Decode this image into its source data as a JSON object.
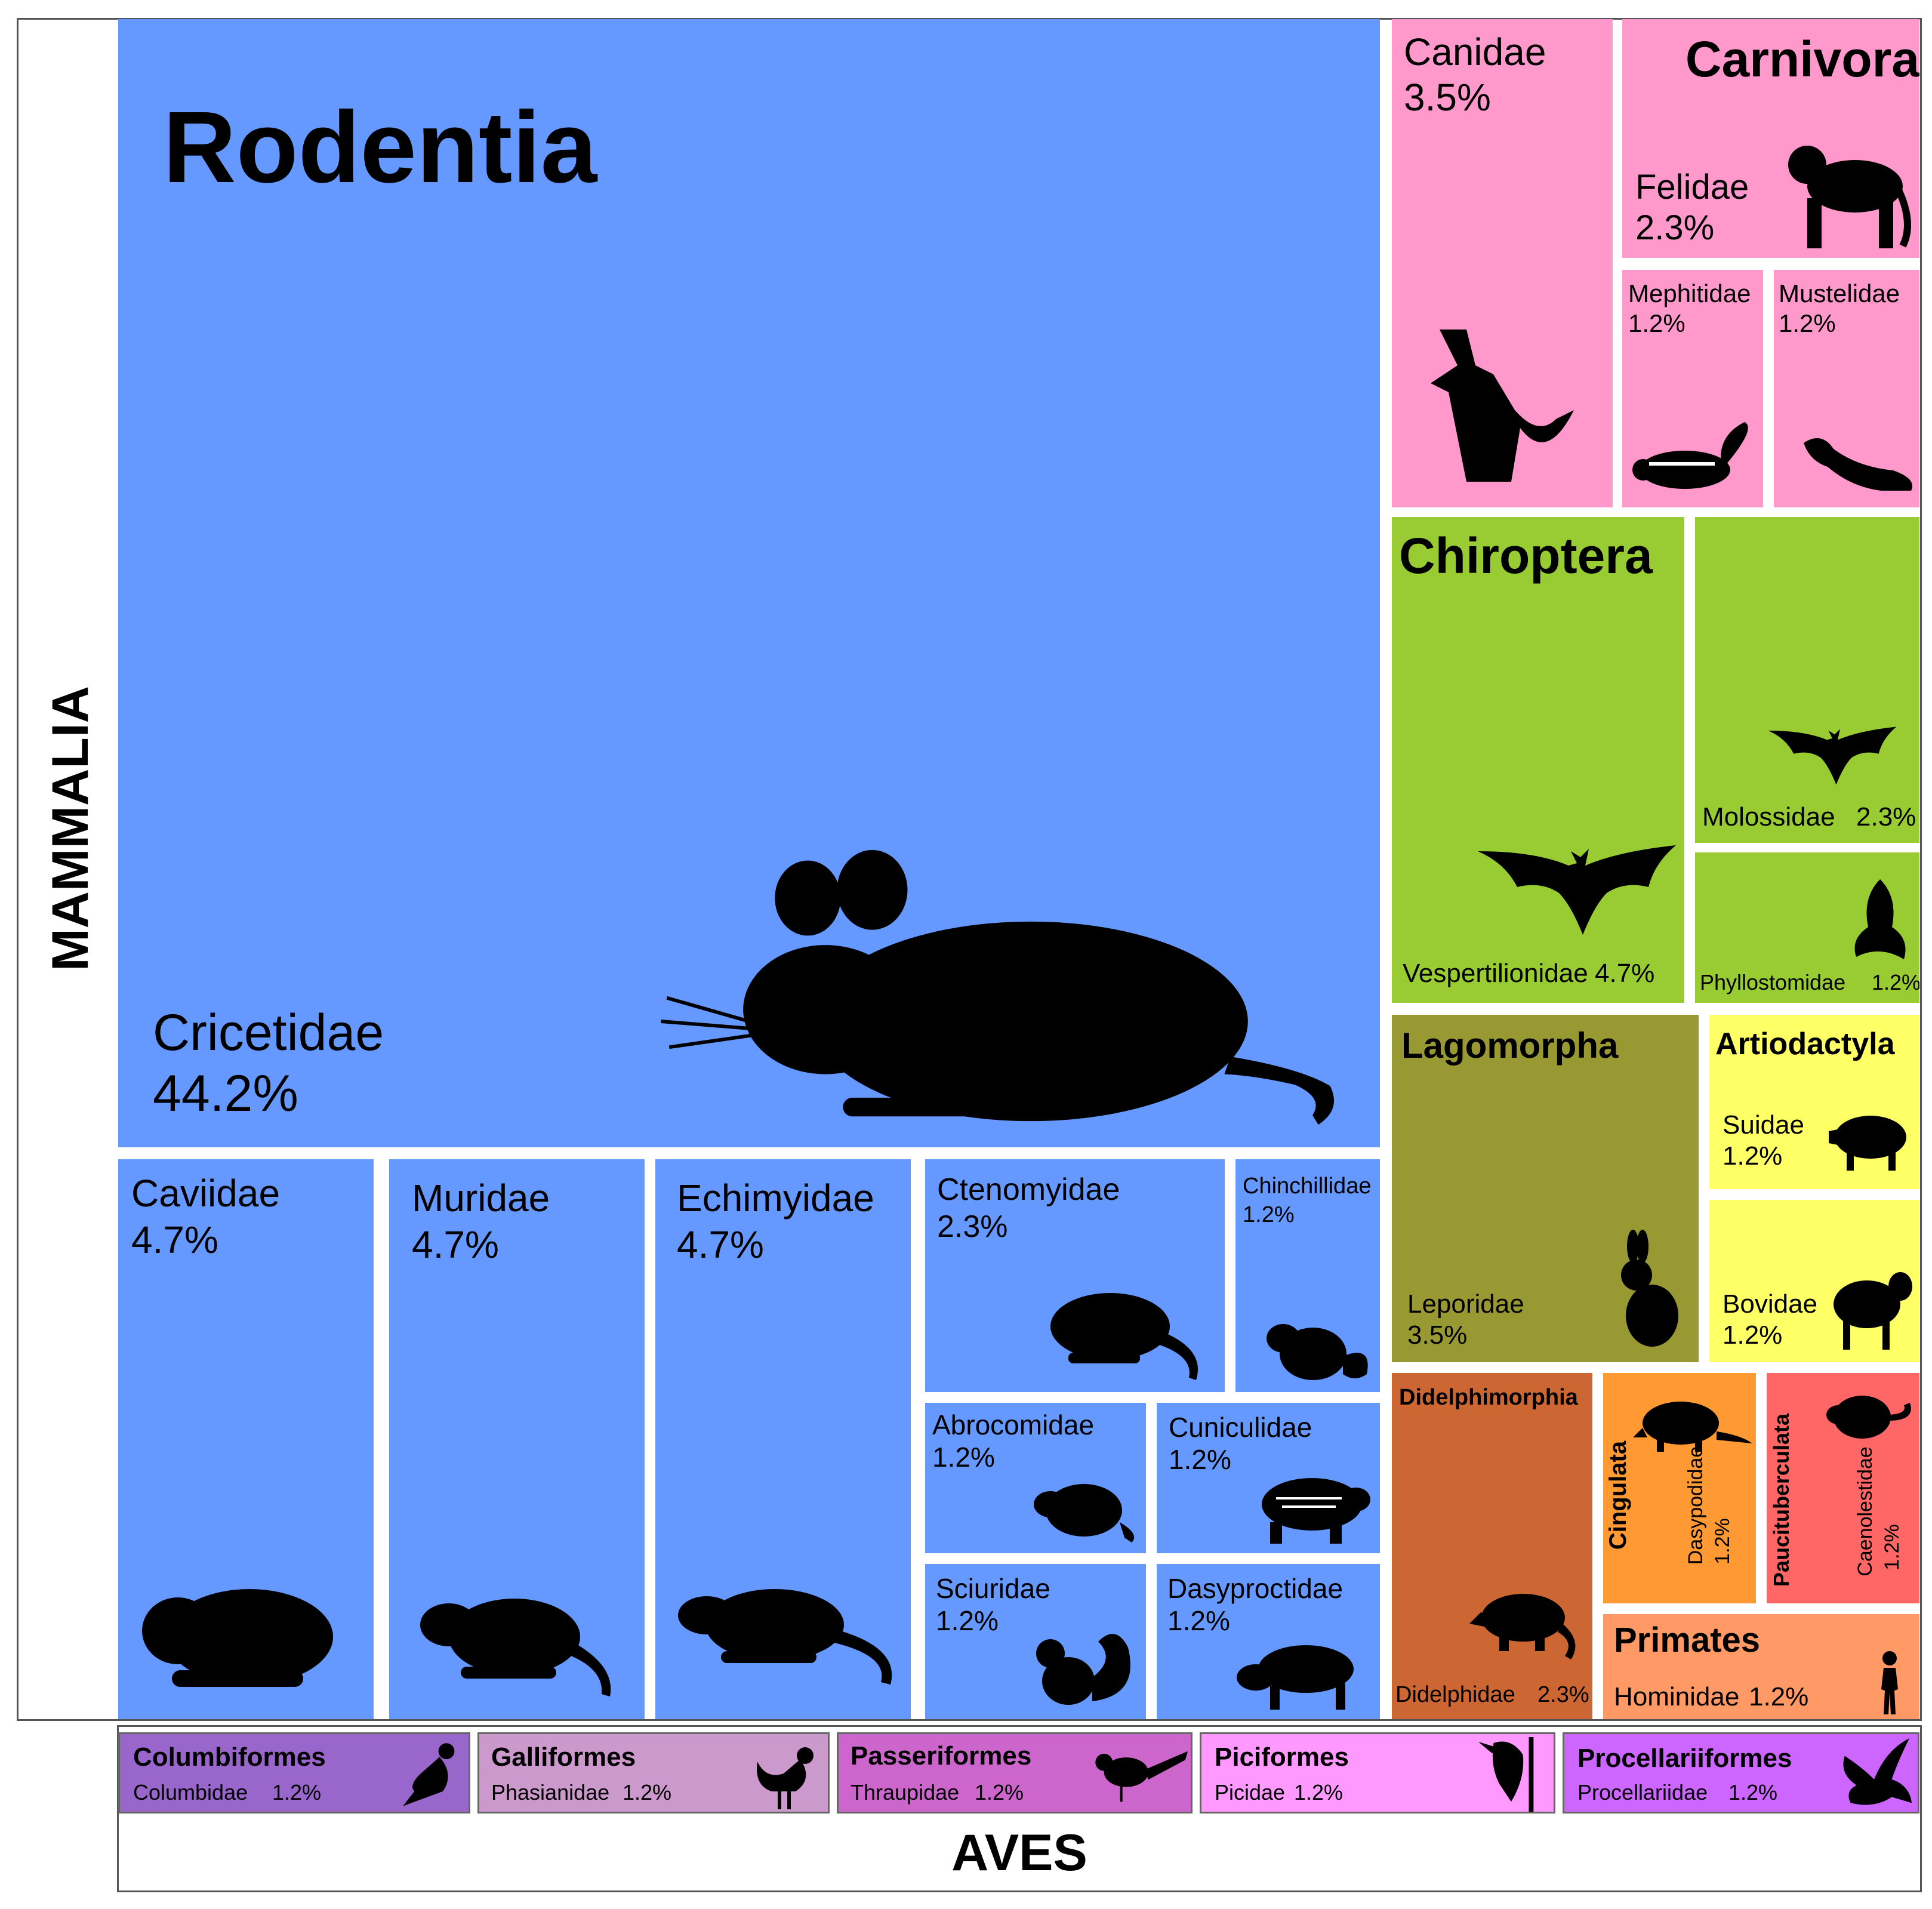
{
  "chart_data": {
    "type": "treemap",
    "title": "",
    "class_labels": {
      "mammalia": "MAMMALIA",
      "aves": "AVES"
    },
    "colors": {
      "rodentia": "#6699ff",
      "carnivora": "#ff99cc",
      "chiroptera": "#99cc33",
      "lagomorpha": "#999933",
      "artiodactyla": "#ffff66",
      "didelphimorphia": "#cc6633",
      "cingulata": "#ff9933",
      "paucituberculata": "#ff6666",
      "primates": "#ff9966",
      "columbiformes": "#9966cc",
      "galliformes": "#cc99cc",
      "passeriformes": "#cc66cc",
      "piciformes": "#ff99ff",
      "procellariiformes": "#cc66ff"
    },
    "orders": {
      "rodentia": {
        "label": "Rodentia",
        "families": [
          {
            "name": "Cricetidae",
            "pct": 44.2,
            "pct_label": "44.2%",
            "icon": "mouse-icon"
          },
          {
            "name": "Caviidae",
            "pct": 4.7,
            "pct_label": "4.7%",
            "icon": "guinea-pig-icon"
          },
          {
            "name": "Muridae",
            "pct": 4.7,
            "pct_label": "4.7%",
            "icon": "rat-icon"
          },
          {
            "name": "Echimyidae",
            "pct": 4.7,
            "pct_label": "4.7%",
            "icon": "spiny-rat-icon"
          },
          {
            "name": "Ctenomyidae",
            "pct": 2.3,
            "pct_label": "2.3%",
            "icon": "tuco-tuco-icon"
          },
          {
            "name": "Chinchillidae",
            "pct": 1.2,
            "pct_label": "1.2%",
            "icon": "chinchilla-icon"
          },
          {
            "name": "Abrocomidae",
            "pct": 1.2,
            "pct_label": "1.2%",
            "icon": "chinchilla-rat-icon"
          },
          {
            "name": "Cuniculidae",
            "pct": 1.2,
            "pct_label": "1.2%",
            "icon": "paca-icon"
          },
          {
            "name": "Sciuridae",
            "pct": 1.2,
            "pct_label": "1.2%",
            "icon": "squirrel-icon"
          },
          {
            "name": "Dasyproctidae",
            "pct": 1.2,
            "pct_label": "1.2%",
            "icon": "agouti-icon"
          }
        ]
      },
      "carnivora": {
        "label": "Carnivora",
        "families": [
          {
            "name": "Canidae",
            "pct": 3.5,
            "pct_label": "3.5%",
            "icon": "fox-icon"
          },
          {
            "name": "Felidae",
            "pct": 2.3,
            "pct_label": "2.3%",
            "icon": "cat-icon"
          },
          {
            "name": "Mephitidae",
            "pct": 1.2,
            "pct_label": "1.2%",
            "icon": "skunk-icon"
          },
          {
            "name": "Mustelidae",
            "pct": 1.2,
            "pct_label": "1.2%",
            "icon": "ferret-icon"
          }
        ]
      },
      "chiroptera": {
        "label": "Chiroptera",
        "families": [
          {
            "name": "Vespertilionidae",
            "pct": 4.7,
            "pct_label": "4.7%",
            "icon": "bat-icon"
          },
          {
            "name": "Molossidae",
            "pct": 2.3,
            "pct_label": "2.3%",
            "icon": "bat-icon"
          },
          {
            "name": "Phyllostomidae",
            "pct": 1.2,
            "pct_label": "1.2%",
            "icon": "leaf-nosed-bat-icon"
          }
        ]
      },
      "lagomorpha": {
        "label": "Lagomorpha",
        "families": [
          {
            "name": "Leporidae",
            "pct": 3.5,
            "pct_label": "3.5%",
            "icon": "rabbit-icon"
          }
        ]
      },
      "artiodactyla": {
        "label": "Artiodactyla",
        "families": [
          {
            "name": "Suidae",
            "pct": 1.2,
            "pct_label": "1.2%",
            "icon": "pig-icon"
          },
          {
            "name": "Bovidae",
            "pct": 1.2,
            "pct_label": "1.2%",
            "icon": "sheep-icon"
          }
        ]
      },
      "didelphimorphia": {
        "label": "Didelphimorphia",
        "families": [
          {
            "name": "Didelphidae",
            "pct": 2.3,
            "pct_label": "2.3%",
            "icon": "opossum-icon"
          }
        ]
      },
      "cingulata": {
        "label": "Cingulata",
        "families": [
          {
            "name": "Dasypodidae",
            "pct": 1.2,
            "pct_label": "1.2%",
            "icon": "armadillo-icon"
          }
        ]
      },
      "paucituberculata": {
        "label": "Paucituberculata",
        "families": [
          {
            "name": "Caenolestidae",
            "pct": 1.2,
            "pct_label": "1.2%",
            "icon": "shrew-opossum-icon"
          }
        ]
      },
      "primates": {
        "label": "Primates",
        "families": [
          {
            "name": "Hominidae",
            "pct": 1.2,
            "pct_label": "1.2%",
            "icon": "human-icon"
          }
        ]
      },
      "columbiformes": {
        "label": "Columbiformes",
        "families": [
          {
            "name": "Columbidae",
            "pct": 1.2,
            "pct_label": "1.2%",
            "icon": "pigeon-icon"
          }
        ]
      },
      "galliformes": {
        "label": "Galliformes",
        "families": [
          {
            "name": "Phasianidae",
            "pct": 1.2,
            "pct_label": "1.2%",
            "icon": "rooster-icon"
          }
        ]
      },
      "passeriformes": {
        "label": "Passeriformes",
        "families": [
          {
            "name": "Thraupidae",
            "pct": 1.2,
            "pct_label": "1.2%",
            "icon": "songbird-icon"
          }
        ]
      },
      "piciformes": {
        "label": "Piciformes",
        "families": [
          {
            "name": "Picidae",
            "pct": 1.2,
            "pct_label": "1.2%",
            "icon": "woodpecker-icon"
          }
        ]
      },
      "procellariiformes": {
        "label": "Procellariiformes",
        "families": [
          {
            "name": "Procellariidae",
            "pct": 1.2,
            "pct_label": "1.2%",
            "icon": "petrel-icon"
          }
        ]
      }
    }
  }
}
